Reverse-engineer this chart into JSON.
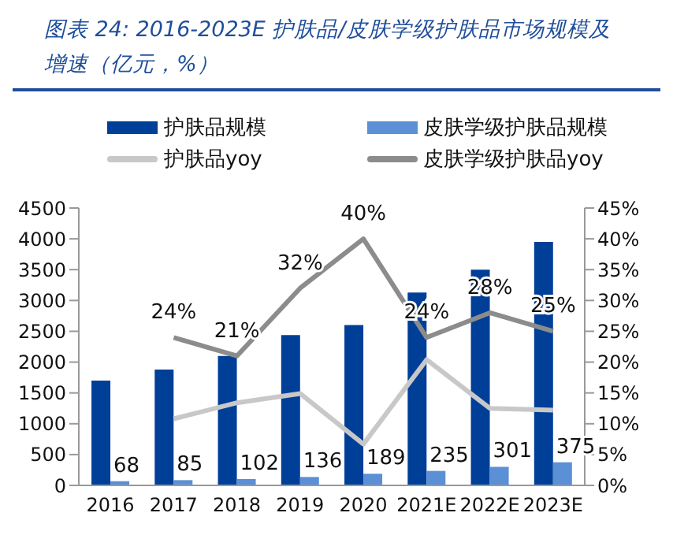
{
  "chart_data": {
    "type": "bar",
    "title": "图表 24:  2016-2023E 护肤品/皮肤学级护肤品市场规模及增速（亿元，%）",
    "categories": [
      "2016",
      "2017",
      "2018",
      "2019",
      "2020",
      "2021E",
      "2022E",
      "2023E"
    ],
    "series": [
      {
        "name": "护肤品规模",
        "color": "#003f98",
        "values": [
          1700,
          1880,
          2100,
          2440,
          2600,
          3130,
          3500,
          3950
        ]
      },
      {
        "name": "皮肤学级护肤品规模",
        "color": "#5b8fd6",
        "values": [
          68,
          85,
          102,
          136,
          189,
          235,
          301,
          375
        ],
        "value_labels": [
          "68",
          "85",
          "102",
          "136",
          "189",
          "235",
          "301",
          "375"
        ]
      },
      {
        "name": "护肤品yoy",
        "type": "line",
        "axis": "y2",
        "color": "#c8c8c8",
        "values": [
          null,
          10.8,
          13.4,
          14.9,
          6.7,
          20.4,
          12.5,
          12.2
        ]
      },
      {
        "name": "皮肤学级护肤品yoy",
        "type": "line",
        "axis": "y2",
        "color": "#8c8c8c",
        "values": [
          null,
          24,
          21,
          32,
          40,
          24,
          28,
          25
        ],
        "value_labels": [
          null,
          "24%",
          "21%",
          "32%",
          "40%",
          "24%",
          "28%",
          "25%"
        ]
      }
    ],
    "ylim": [
      0,
      4500
    ],
    "yticks": [
      0,
      500,
      1000,
      1500,
      2000,
      2500,
      3000,
      3500,
      4000,
      4500
    ],
    "y2lim": [
      0,
      45
    ],
    "y2ticks": [
      {
        "value": 0,
        "label": "0%"
      },
      {
        "value": 5,
        "label": "5%"
      },
      {
        "value": 10,
        "label": "10%"
      },
      {
        "value": 15,
        "label": "15%"
      },
      {
        "value": 20,
        "label": "20%"
      },
      {
        "value": 25,
        "label": "25%"
      },
      {
        "value": 30,
        "label": "30%"
      },
      {
        "value": 35,
        "label": "35%"
      },
      {
        "value": 40,
        "label": "40%"
      },
      {
        "value": 45,
        "label": "45%"
      }
    ],
    "legend": "top",
    "grid": false,
    "marker": "none"
  }
}
